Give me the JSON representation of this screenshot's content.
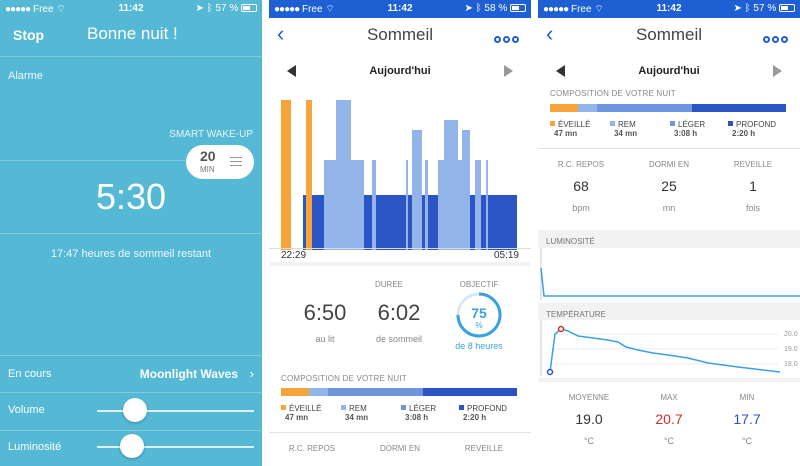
{
  "status": {
    "s1": {
      "carrier": "Free",
      "time": "11:42",
      "battery": "57 %",
      "battery_level": 0.57
    },
    "s2": {
      "carrier": "Free",
      "time": "11:42",
      "battery": "58 %",
      "battery_level": 0.58
    },
    "s3": {
      "carrier": "Free",
      "time": "11:42",
      "battery": "57 %",
      "battery_level": 0.57
    }
  },
  "night": {
    "stop": "Stop",
    "title": "Bonne nuit !",
    "alarm_label": "Alarme",
    "smart_wakeup_label": "SMART WAKE-UP",
    "smart_wakeup_value": "20",
    "smart_wakeup_unit": "MIN",
    "alarm_time": "5:30",
    "remaining": "17:47 heures de sommeil restant",
    "playing_label": "En cours",
    "playing_value": "Moonlight Waves",
    "volume_label": "Volume",
    "volume_level": 0.24,
    "brightness_label": "Luminosité",
    "brightness_level": 0.22
  },
  "sleep": {
    "title": "Sommeil",
    "day": "Aujourd'hui",
    "start_time": "22:29",
    "end_time": "05:19",
    "duration_label": "DUREE",
    "in_bed_value": "6:50",
    "in_bed_label": "au lit",
    "asleep_value": "6:02",
    "asleep_label": "de sommeil",
    "goal_label": "OBJECTIF",
    "goal_value": "75",
    "goal_unit": "%",
    "goal_fraction": 0.75,
    "goal_target": "de 8 heures",
    "composition_label": "COMPOSITION DE VOTRE NUIT",
    "stages": [
      {
        "name": "ÉVEILLÉ",
        "duration": "47 mn",
        "color": "#f7a43a"
      },
      {
        "name": "REM",
        "duration": "34 mn",
        "color": "#93b4e8"
      },
      {
        "name": "LÉGER",
        "duration": "3:08 h",
        "color": "#6e96df"
      },
      {
        "name": "PROFOND",
        "duration": "2:20 h",
        "color": "#2b54c5"
      }
    ],
    "rc_label": "R.C. REPOS",
    "slept_in_label": "DORMI EN",
    "woke_label": "REVEILLE"
  },
  "detail": {
    "title": "Sommeil",
    "day": "Aujourd'hui",
    "composition_label": "COMPOSITION DE VOTRE NUIT",
    "stages": [
      {
        "name": "ÉVEILLÉ",
        "duration": "47 mn",
        "color": "#f7a43a"
      },
      {
        "name": "REM",
        "duration": "34 mn",
        "color": "#93b4e8"
      },
      {
        "name": "LÉGER",
        "duration": "3:08 h",
        "color": "#6e96df"
      },
      {
        "name": "PROFOND",
        "duration": "2:20 h",
        "color": "#2b54c5"
      }
    ],
    "rc_label": "R.C. REPOS",
    "rc_value": "68",
    "rc_unit": "bpm",
    "slept_in_label": "DORMI EN",
    "slept_in_value": "25",
    "slept_in_unit": "mn",
    "woke_label": "REVEILLE",
    "woke_value": "1",
    "woke_unit": "fois",
    "luminosity_label": "LUMINOSITÉ",
    "temperature_label": "TEMPÉRATURE",
    "temp_ticks": [
      "20.0",
      "19.0",
      "18.0"
    ],
    "avg_label": "MOYENNE",
    "avg_value": "19.0",
    "max_label": "MAX",
    "max_value": "20.7",
    "min_label": "MIN",
    "min_value": "17.7",
    "temp_unit": "°C"
  },
  "colors": {
    "night_bg": "#55b9d6",
    "accent_blue": "#1e5fd3",
    "awake_orange": "#f7a43a",
    "deep_blue": "#2b54c5",
    "light_blue": "#93b4e8",
    "max_red": "#d0302a",
    "min_blue": "#2b54c5",
    "graph_line": "#3aa2e0"
  }
}
